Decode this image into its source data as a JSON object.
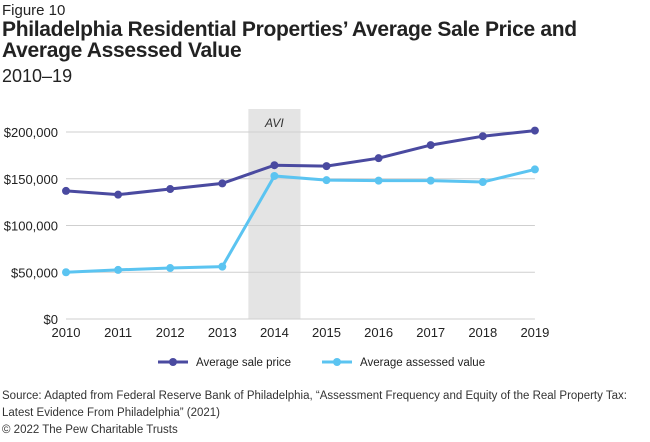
{
  "figure_label": "Figure 10",
  "chart_data": {
    "type": "line",
    "title": "Philadelphia Residential Properties’ Average Sale Price and Average Assessed Value",
    "subtitle": "2010–19",
    "categories": [
      "2010",
      "2011",
      "2012",
      "2013",
      "2014",
      "2015",
      "2016",
      "2017",
      "2018",
      "2019"
    ],
    "series": [
      {
        "name": "Average sale price",
        "color": "#4a4aa0",
        "values": [
          137000,
          133000,
          139000,
          145000,
          164500,
          163500,
          172000,
          186000,
          195500,
          201500
        ]
      },
      {
        "name": "Average assessed value",
        "color": "#5bc4f1",
        "values": [
          50000,
          52500,
          54500,
          56000,
          153000,
          148500,
          148000,
          148000,
          146500,
          160000
        ]
      }
    ],
    "ylim": [
      0,
      200000
    ],
    "yticks": [
      "$0",
      "$50,000",
      "$100,000",
      "$150,000",
      "$200,000"
    ],
    "ytick_values": [
      0,
      50000,
      100000,
      150000,
      200000
    ],
    "grid": true,
    "legend": "bottom",
    "annotation": {
      "label": "AVI",
      "range": [
        "2013.5",
        "2014.5"
      ],
      "color": "#e4e4e4"
    }
  },
  "source": "Source: Adapted from Federal Reserve Bank of Philadelphia, “Assessment Frequency and Equity of the Real Property Tax: Latest Evidence From Philadelphia” (2021)",
  "copyright": "© 2022 The Pew Charitable Trusts"
}
